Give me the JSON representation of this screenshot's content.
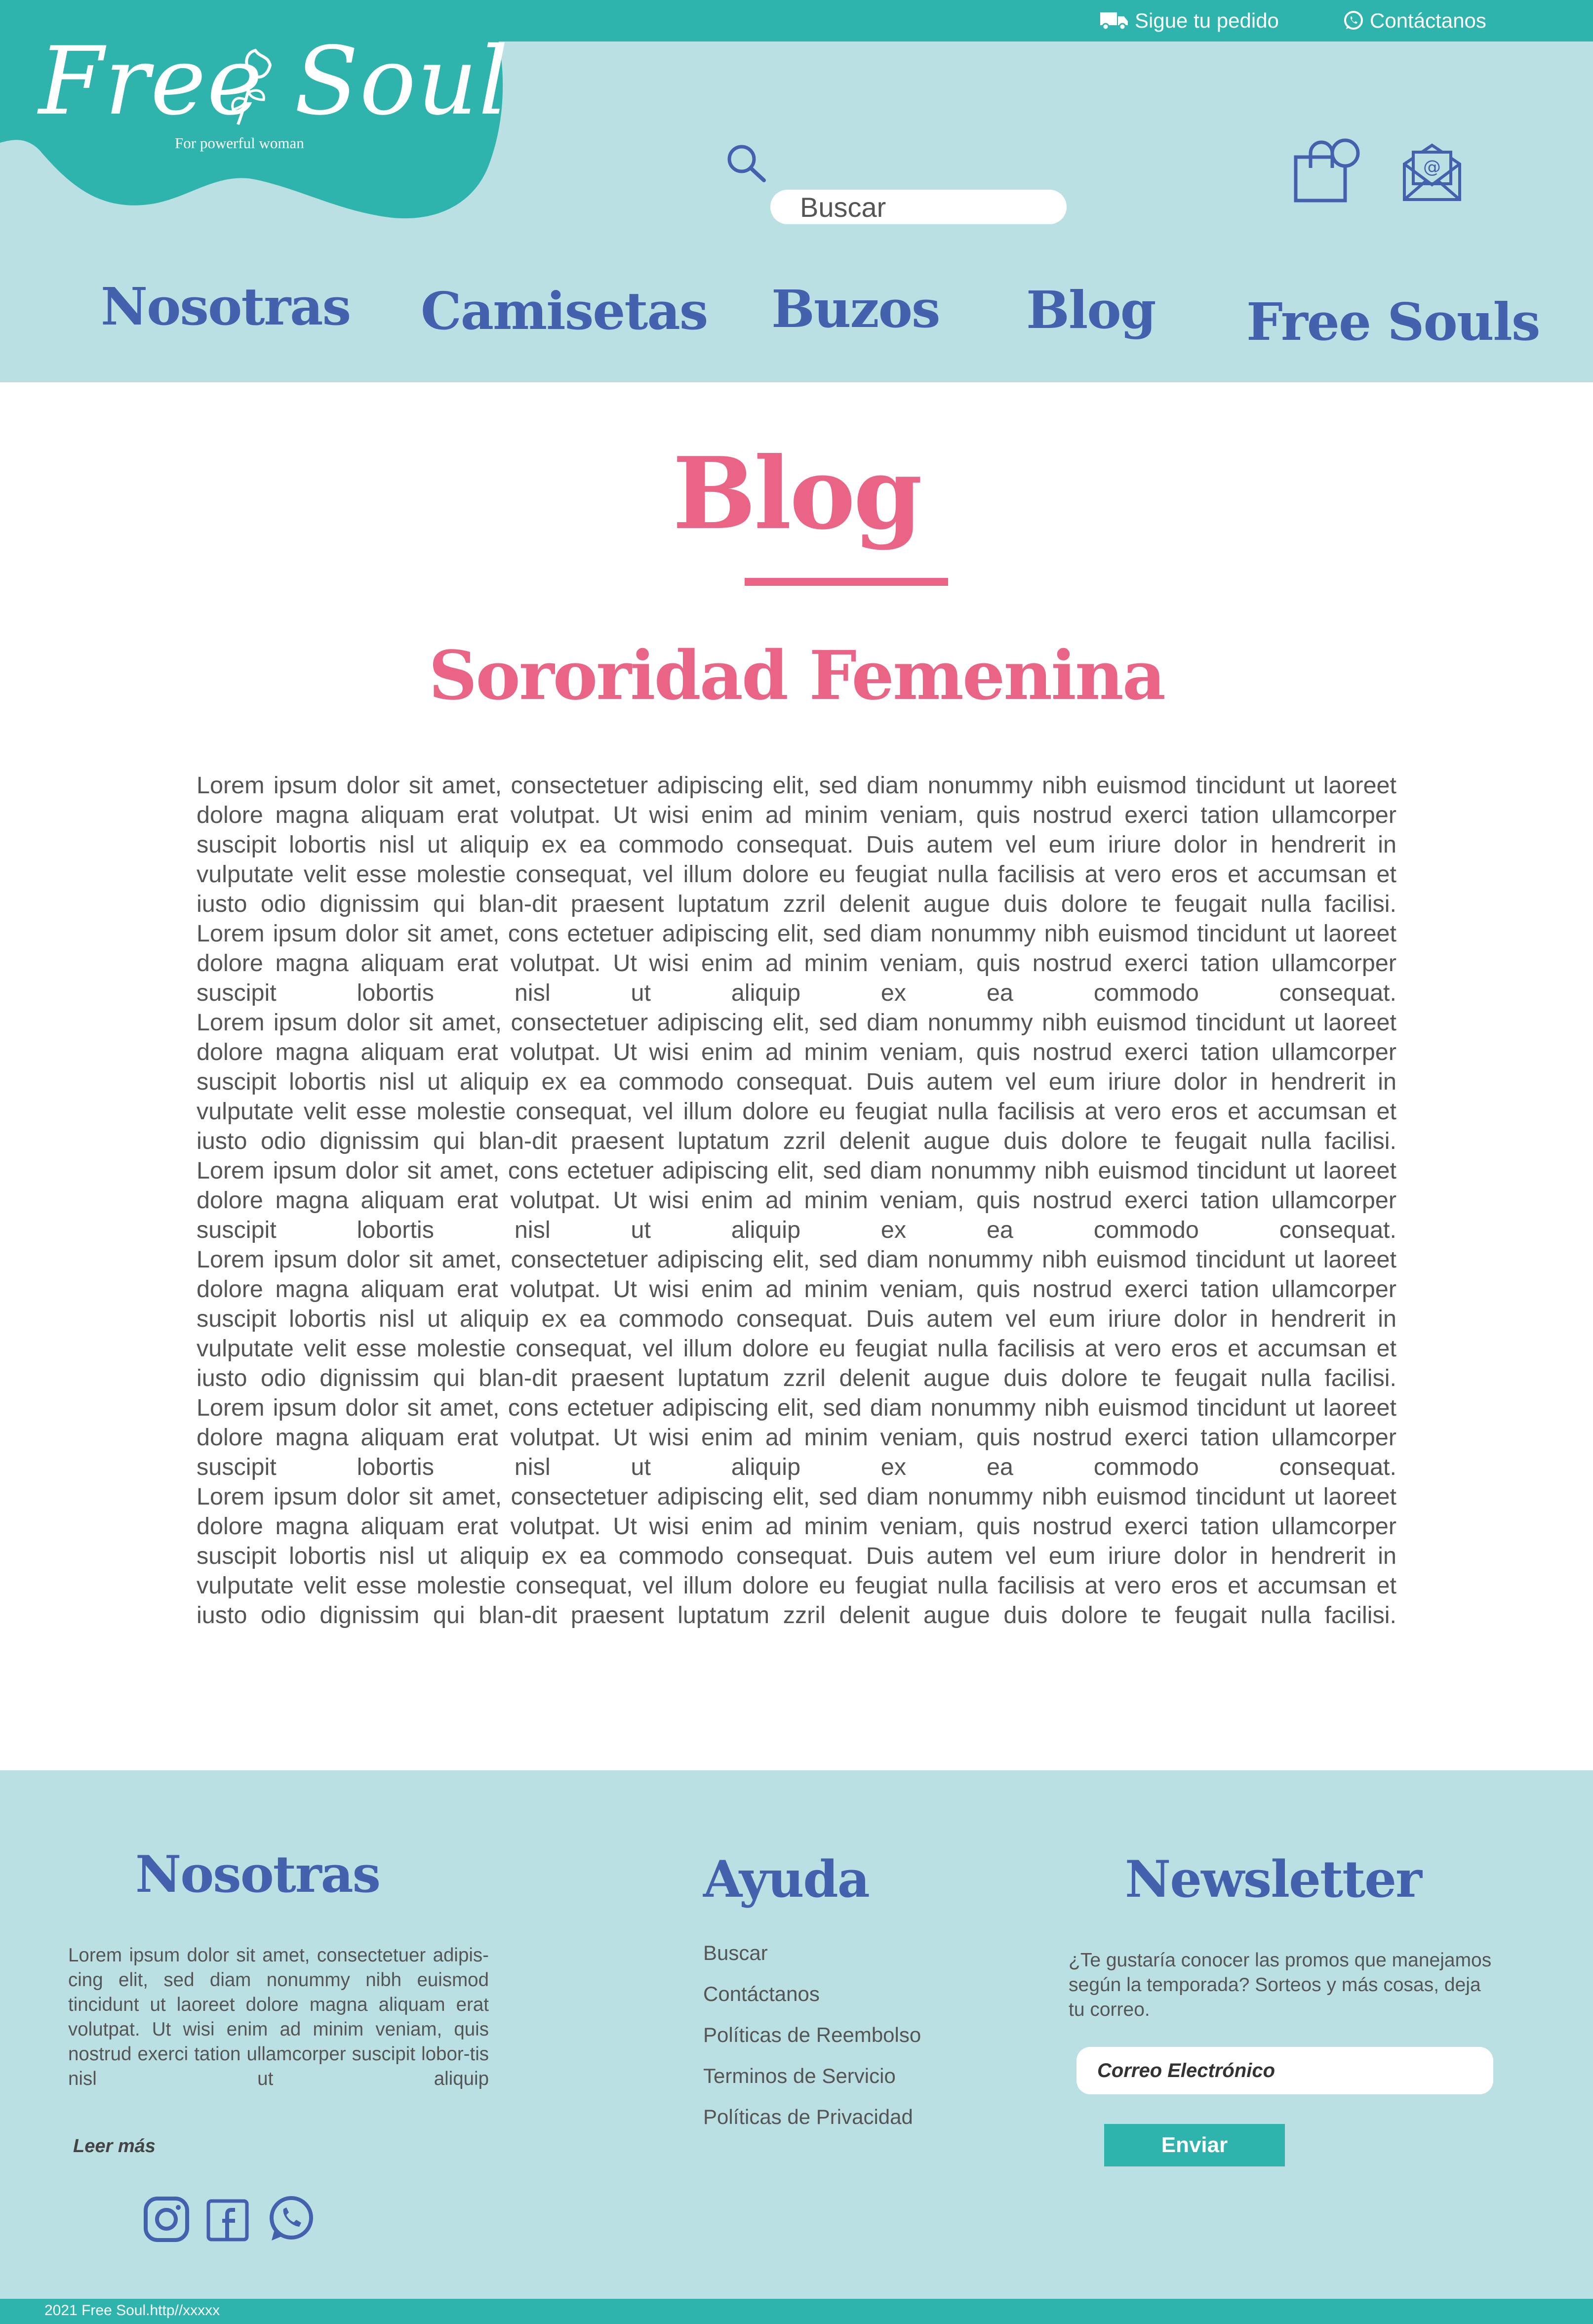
{
  "topbar": {
    "track_order": "Sigue tu pedido",
    "contact": "Contáctanos"
  },
  "logo": {
    "word1": "Free",
    "word2": "Soul",
    "tagline": "For powerful woman"
  },
  "search": {
    "placeholder": "Buscar"
  },
  "nav": [
    "Nosotras",
    "Camisetas",
    "Buzos",
    "Blog",
    "Free Souls"
  ],
  "main": {
    "section_title": "Blog",
    "article_title": "Sororidad Femenina",
    "paragraphs": [
      "Lorem ipsum dolor sit amet, consectetuer adipiscing elit, sed diam nonummy nibh euismod tincidunt ut laoreet dolore magna aliquam erat volutpat. Ut wisi enim ad minim veniam, quis nostrud exerci tation ullamcorper suscipit lobortis nisl ut aliquip ex ea commodo consequat. Duis autem vel eum iriure dolor in hendrerit in vulputate velit esse molestie consequat, vel illum dolore eu feugiat nulla facilisis at vero eros et accumsan et iusto odio dignissim qui blan-dit praesent luptatum zzril delenit augue duis dolore te feugait nulla facilisi.",
      "Lorem ipsum dolor sit amet, cons ectetuer adipiscing elit, sed diam nonummy nibh euismod tincidunt ut laoreet dolore magna aliquam erat volutpat. Ut wisi enim ad minim veniam, quis nostrud exerci tation ullamcorper suscipit lobortis nisl ut aliquip ex ea commodo consequat.",
      "Lorem ipsum dolor sit amet, consectetuer adipiscing elit, sed diam nonummy nibh euismod tincidunt ut laoreet dolore magna aliquam erat volutpat. Ut wisi enim ad minim veniam, quis nostrud exerci tation ullamcorper suscipit lobortis nisl ut aliquip ex ea commodo consequat. Duis autem vel eum iriure dolor in hendrerit in vulputate velit esse molestie consequat, vel illum dolore eu feugiat nulla facilisis at vero eros et accumsan et iusto odio dignissim qui blan-dit praesent luptatum zzril delenit augue duis dolore te feugait nulla facilisi.",
      "Lorem ipsum dolor sit amet, cons ectetuer adipiscing elit, sed diam nonummy nibh euismod tincidunt ut laoreet dolore magna aliquam erat volutpat. Ut wisi enim ad minim veniam, quis nostrud exerci tation ullamcorper suscipit lobortis nisl ut aliquip ex ea commodo consequat.",
      "Lorem ipsum dolor sit amet, consectetuer adipiscing elit, sed diam nonummy nibh euismod tincidunt ut laoreet dolore magna aliquam erat volutpat. Ut wisi enim ad minim veniam, quis nostrud exerci tation ullamcorper suscipit lobortis nisl ut aliquip ex ea commodo consequat. Duis autem vel eum iriure dolor in hendrerit in vulputate velit esse molestie consequat, vel illum dolore eu feugiat nulla facilisis at vero eros et accumsan et iusto odio dignissim qui blan-dit praesent luptatum zzril delenit augue duis dolore te feugait nulla facilisi.",
      "Lorem ipsum dolor sit amet, cons ectetuer adipiscing elit, sed diam nonummy nibh euismod tincidunt ut laoreet dolore magna aliquam erat volutpat. Ut wisi enim ad minim veniam, quis nostrud exerci tation ullamcorper suscipit lobortis nisl ut aliquip ex ea commodo consequat.",
      "Lorem ipsum dolor sit amet, consectetuer adipiscing elit, sed diam nonummy nibh euismod tincidunt ut laoreet dolore magna aliquam erat volutpat. Ut wisi enim ad minim veniam, quis nostrud exerci tation ullamcorper suscipit lobortis nisl ut aliquip ex ea commodo consequat. Duis autem vel eum iriure dolor in hendrerit in vulputate velit esse molestie consequat, vel illum dolore eu feugiat nulla facilisis at vero eros et accumsan et iusto odio dignissim qui blan-dit praesent luptatum zzril delenit augue duis dolore te feugait nulla facilisi."
    ]
  },
  "footer": {
    "about": {
      "heading": "Nosotras",
      "text": "Lorem ipsum dolor sit amet, consectetuer adipis-cing elit, sed diam nonummy nibh euismod tincidunt ut laoreet dolore magna aliquam erat volutpat. Ut wisi enim ad minim veniam, quis nostrud exerci tation ullamcorper suscipit lobor-tis nisl ut aliquip",
      "read_more": "Leer más"
    },
    "help": {
      "heading": "Ayuda",
      "links": [
        "Buscar",
        "Contáctanos",
        "Políticas de Reembolso",
        "Terminos de Servicio",
        "Políticas de Privacidad"
      ]
    },
    "newsletter": {
      "heading": "Newsletter",
      "text": "¿Te gustaría conocer las promos que manejamos según la temporada? Sorteos y más cosas, deja tu correo.",
      "email_placeholder": "Correo Electrónico",
      "submit_label": "Enviar"
    },
    "social_icons": [
      "instagram-icon",
      "facebook-icon",
      "whatsapp-icon"
    ],
    "copyright": "2021 Free Soul.http//xxxxx"
  },
  "colors": {
    "teal": "#2fb3ad",
    "light_teal": "#bae0e4",
    "navy": "#4461ad",
    "pink": "#ea6585",
    "text_gray": "#555555"
  }
}
